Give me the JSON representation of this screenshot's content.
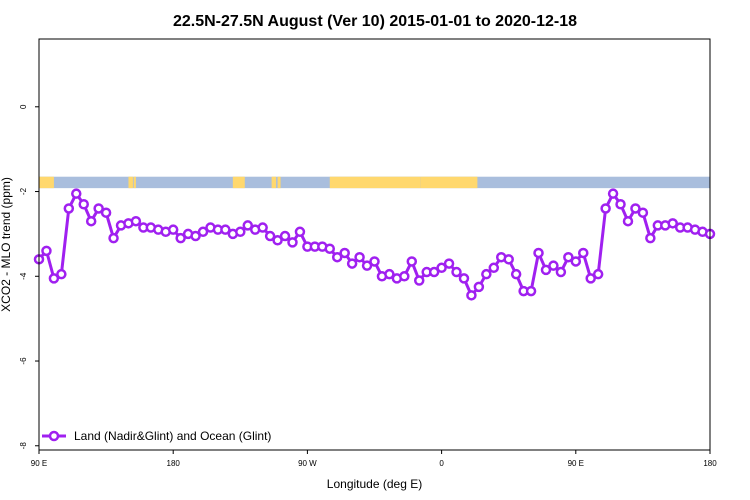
{
  "chart_data": {
    "type": "line",
    "title": "22.5N-27.5N August (Ver 10)   2015-01-01 to 2020-12-18",
    "xlabel": "Longitude (deg E)",
    "ylabel": "XCO2 - MLO trend (ppm)",
    "x_tick_labels": [
      "90 E",
      "180",
      "90 W",
      "0",
      "90 E",
      "180"
    ],
    "y_ticks": [
      0,
      -2,
      -4,
      -6,
      -8
    ],
    "ylim": [
      -8.1,
      1.6
    ],
    "x": [
      90,
      95,
      100,
      105,
      110,
      115,
      120,
      125,
      130,
      135,
      140,
      145,
      150,
      155,
      160,
      165,
      170,
      175,
      180,
      185,
      190,
      195,
      200,
      205,
      210,
      215,
      220,
      225,
      230,
      235,
      240,
      245,
      250,
      255,
      260,
      265,
      270,
      275,
      280,
      285,
      290,
      295,
      300,
      305,
      310,
      315,
      320,
      325,
      330,
      335,
      340,
      345,
      350,
      355,
      360,
      365,
      370,
      375,
      380,
      385,
      390,
      395,
      400,
      405,
      410,
      415,
      420,
      425,
      430,
      435,
      440,
      445,
      450,
      455,
      460,
      465,
      470,
      475,
      480,
      485,
      490,
      495,
      500,
      505,
      510,
      515,
      520,
      525,
      530,
      535,
      540
    ],
    "series": [
      {
        "name": "Land (Nadir&Glint) and Ocean (Glint)",
        "color": "#a020f0",
        "values": [
          -3.6,
          -3.4,
          -4.05,
          -3.95,
          -2.4,
          -2.05,
          -2.3,
          -2.7,
          -2.4,
          -2.5,
          -3.1,
          -2.8,
          -2.75,
          -2.7,
          -2.85,
          -2.85,
          -2.9,
          -2.95,
          -2.9,
          -3.1,
          -3.0,
          -3.05,
          -2.95,
          -2.85,
          -2.9,
          -2.9,
          -3.0,
          -2.95,
          -2.8,
          -2.9,
          -2.85,
          -3.05,
          -3.15,
          -3.05,
          -3.2,
          -2.95,
          -3.3,
          -3.3,
          -3.3,
          -3.35,
          -3.55,
          -3.45,
          -3.7,
          -3.55,
          -3.75,
          -3.65,
          -4.0,
          -3.95,
          -4.05,
          -4.0,
          -3.65,
          -4.1,
          -3.9,
          -3.9,
          -3.8,
          -3.7,
          -3.9,
          -4.05,
          -4.45,
          -4.25,
          -3.95,
          -3.8,
          -3.55,
          -3.6,
          -3.95,
          -4.35,
          -4.35,
          -3.45,
          -3.85,
          -3.75,
          -3.9,
          -3.55,
          -3.65,
          -3.45,
          -4.05,
          -3.95,
          -2.4,
          -2.05,
          -2.3,
          -2.7,
          -2.4,
          -2.5,
          -3.1,
          -2.8,
          -2.8,
          -2.75,
          -2.85,
          -2.85,
          -2.9,
          -2.95,
          -3.0
        ]
      }
    ],
    "grid": false,
    "legend_position": "bottom-left",
    "land_ocean_strip": {
      "y_range": [
        -1.65,
        -1.92
      ],
      "ocean_color": "#a9bedd",
      "land_color": "#ffd86e",
      "land_segments": [
        [
          90,
          100
        ],
        [
          150,
          153
        ],
        [
          153.5,
          155
        ],
        [
          220,
          228
        ],
        [
          246,
          249
        ],
        [
          250,
          252
        ],
        [
          285,
          314
        ],
        [
          314,
          346
        ],
        [
          346,
          384
        ]
      ]
    }
  }
}
